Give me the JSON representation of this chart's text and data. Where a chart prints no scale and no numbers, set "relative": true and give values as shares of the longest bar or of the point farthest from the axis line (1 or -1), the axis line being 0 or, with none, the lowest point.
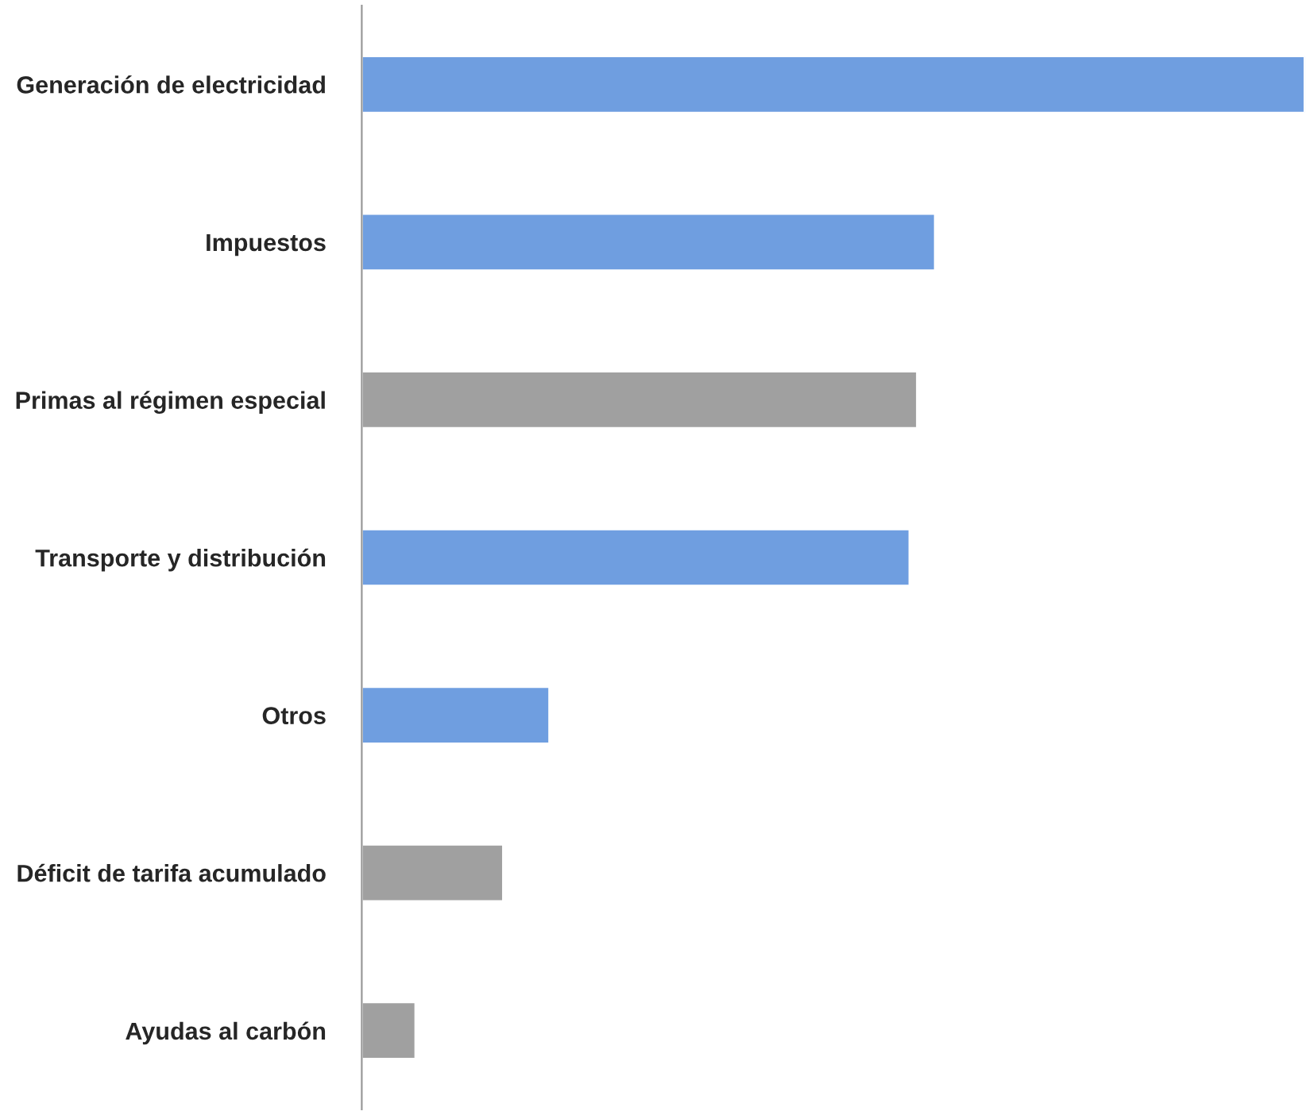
{
  "chart_data": {
    "type": "bar",
    "orientation": "horizontal",
    "relative": true,
    "categories": [
      "Generación de electricidad",
      "Impuestos",
      "Primas al régimen especial",
      "Transporte y distribución",
      "Otros",
      "Déficit de tarifa acumulado",
      "Ayudas al carbón"
    ],
    "values": [
      1,
      0.608,
      0.589,
      0.581,
      0.199,
      0.15,
      0.057
    ],
    "colors": [
      "#6f9ee0",
      "#6f9ee0",
      "#a0a0a0",
      "#6f9ee0",
      "#6f9ee0",
      "#a0a0a0",
      "#a0a0a0"
    ],
    "grid": false,
    "legend": false
  }
}
